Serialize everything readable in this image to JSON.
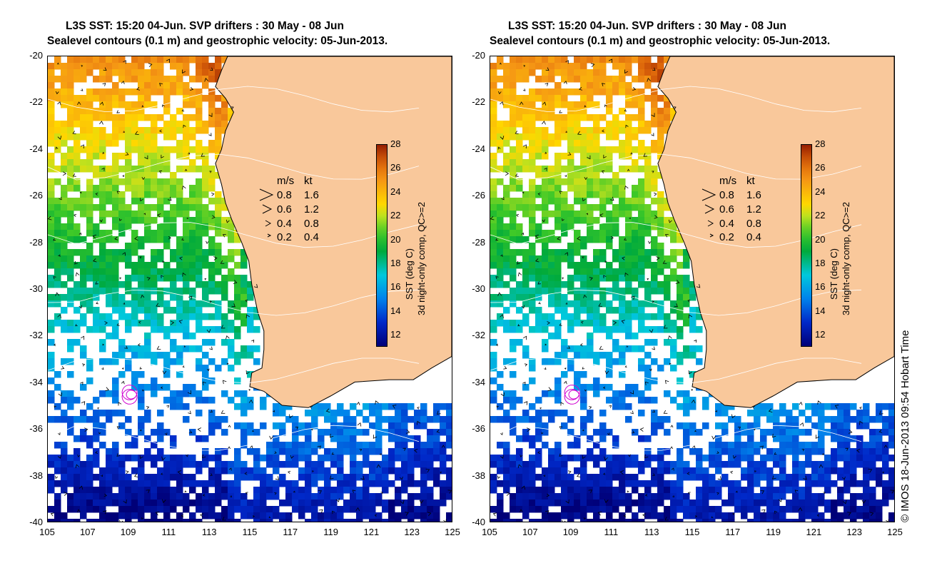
{
  "titles": {
    "line1": "L3S SST: 15:20 04-Jun. SVP drifters : 30 May - 08 Jun",
    "line2": "Sealevel contours (0.1 m) and geostrophic velocity: 05-Jun-2013."
  },
  "axes": {
    "lat_ticks": [
      "-20",
      "-22",
      "-24",
      "-26",
      "-28",
      "-30",
      "-32",
      "-34",
      "-36",
      "-38",
      "-40"
    ],
    "lon_ticks": [
      "105",
      "107",
      "109",
      "111",
      "113",
      "115",
      "117",
      "119",
      "121",
      "123",
      "125"
    ],
    "lat_range": [
      -40,
      -20
    ],
    "lon_range": [
      105,
      125
    ]
  },
  "speed_legend": {
    "header_ms": "m/s",
    "header_kt": "kt",
    "rows": [
      {
        "ms": "0.8",
        "kt": "1.6"
      },
      {
        "ms": "0.6",
        "kt": "1.2"
      },
      {
        "ms": "0.4",
        "kt": "0.8"
      },
      {
        "ms": "0.2",
        "kt": "0.4"
      }
    ]
  },
  "colorbar": {
    "ticks": [
      "28",
      "26",
      "24",
      "22",
      "20",
      "18",
      "16",
      "14",
      "12"
    ],
    "label1": "SST (deg C)",
    "label2": "3d night-only comp, QC>=2",
    "range": [
      11,
      28
    ]
  },
  "credit": "© IMOS 18-Jun-2013 09:54 Hobart Time",
  "colors": {
    "land": "#f9c89b",
    "coast": "#000000",
    "drifter": "#d000d0"
  }
}
